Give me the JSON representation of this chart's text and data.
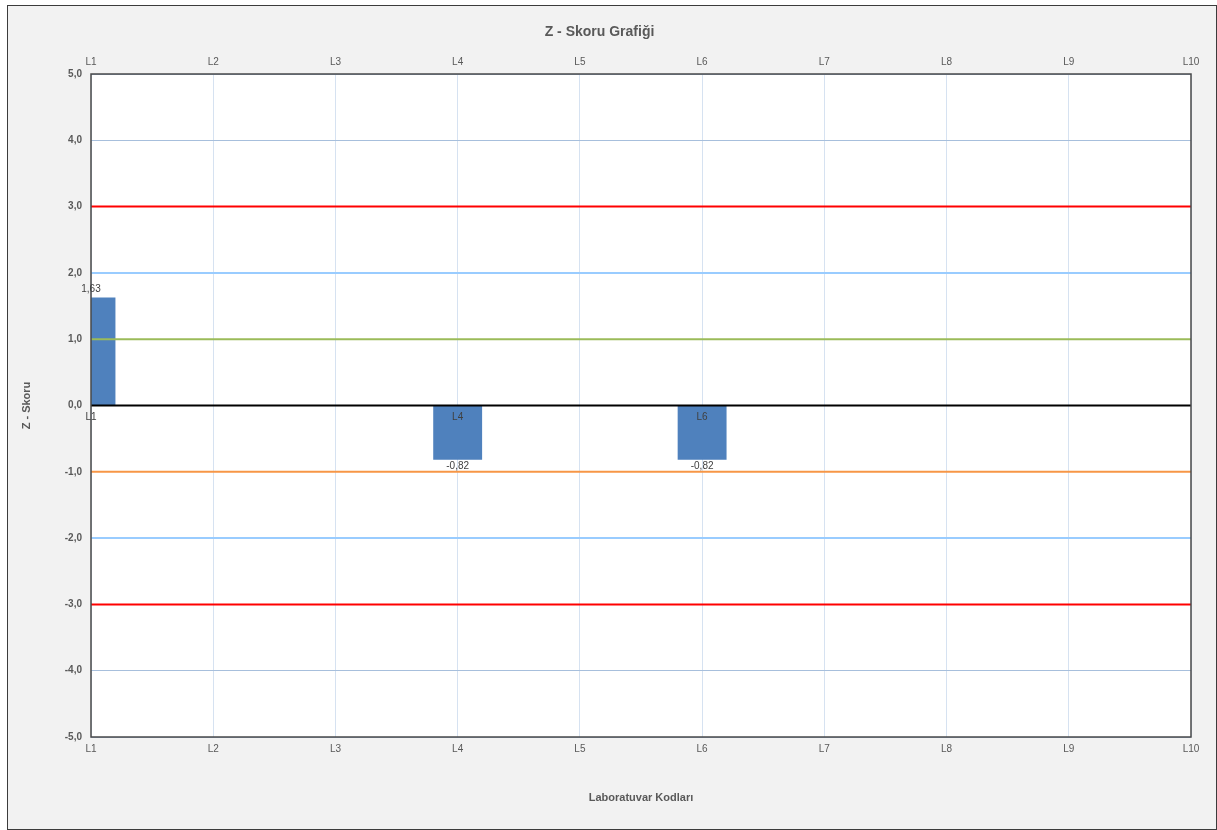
{
  "chart_data": {
    "type": "bar",
    "title": "Z - Skoru Grafiği",
    "xlabel": "Laboratuvar Kodları",
    "ylabel": "Z - Skoru",
    "categories": [
      "L1",
      "L2",
      "L3",
      "L4",
      "L5",
      "L6",
      "L7",
      "L8",
      "L9",
      "L10"
    ],
    "values": [
      1.63,
      null,
      null,
      -0.82,
      null,
      -0.82,
      null,
      null,
      null,
      null
    ],
    "color": "#4f81bd",
    "value_labels": [
      "1,63",
      null,
      null,
      "-0,82",
      null,
      "-0,82",
      null,
      null,
      null,
      null
    ],
    "ylim": [
      -5,
      5
    ],
    "yticks": [
      {
        "value": -5,
        "label": "-5,0"
      },
      {
        "value": -4,
        "label": "-4,0"
      },
      {
        "value": -3,
        "label": "-3,0"
      },
      {
        "value": -2,
        "label": "-2,0"
      },
      {
        "value": -1,
        "label": "-1,0"
      },
      {
        "value": 0,
        "label": "0,0"
      },
      {
        "value": 1,
        "label": "1,0"
      },
      {
        "value": 2,
        "label": "2,0"
      },
      {
        "value": 3,
        "label": "3,0"
      },
      {
        "value": 4,
        "label": "4,0"
      },
      {
        "value": 5,
        "label": "5,0"
      }
    ],
    "grid": true,
    "ref_lines": [
      {
        "axis": "y",
        "value": 3,
        "color": "#ff0000"
      },
      {
        "axis": "y",
        "value": 2,
        "color": "#99ccff"
      },
      {
        "axis": "y",
        "value": 1,
        "color": "#9bbb59"
      },
      {
        "axis": "y",
        "value": 0,
        "color": "#000000"
      },
      {
        "axis": "y",
        "value": -1,
        "color": "#f79646"
      },
      {
        "axis": "y",
        "value": -2,
        "color": "#99ccff"
      },
      {
        "axis": "y",
        "value": -3,
        "color": "#ff0000"
      }
    ],
    "annotations": [
      {
        "text": "L1",
        "x": "L1",
        "y": 0
      },
      {
        "text": "L4",
        "x": "L4",
        "y": 0
      },
      {
        "text": "L6",
        "x": "L6",
        "y": 0
      }
    ]
  }
}
